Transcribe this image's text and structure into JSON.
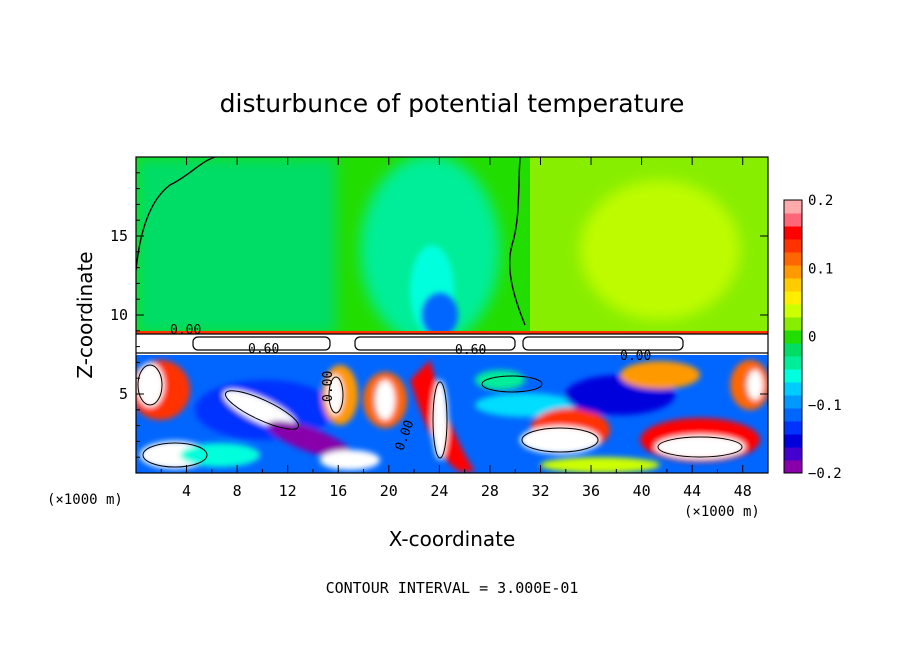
{
  "chart_data": {
    "type": "heatmap",
    "title": "disturbunce of potential temperature",
    "xlabel": "X-coordinate",
    "ylabel": "Z-coordinate",
    "x_unit_label": "(×1000 m)",
    "y_unit_label": "(×1000 m)",
    "footer": "CONTOUR INTERVAL = 3.000E-01",
    "xlim": [
      0,
      50
    ],
    "ylim": [
      0,
      20
    ],
    "x_ticks": [
      "4",
      "8",
      "12",
      "16",
      "20",
      "24",
      "28",
      "32",
      "36",
      "40",
      "44",
      "48"
    ],
    "x_tick_values": [
      4,
      8,
      12,
      16,
      20,
      24,
      28,
      32,
      36,
      40,
      44,
      48
    ],
    "y_ticks": [
      "5",
      "10",
      "15"
    ],
    "y_tick_values": [
      5,
      10,
      15
    ],
    "colorbar": {
      "range": [
        -0.2,
        0.2
      ],
      "ticks": [
        "0.2",
        "0.1",
        "0",
        "−0.1",
        "−0.2"
      ],
      "tick_values": [
        0.2,
        0.1,
        0,
        -0.1,
        -0.2
      ],
      "colors": [
        "#8800aa",
        "#4400cc",
        "#0000dd",
        "#0033ff",
        "#0066ff",
        "#0099ff",
        "#00ccff",
        "#00ffdd",
        "#00ee99",
        "#00dd66",
        "#22dd00",
        "#88ee00",
        "#ccff00",
        "#ffee00",
        "#ffcc00",
        "#ff9900",
        "#ff6600",
        "#ff3300",
        "#ff0000",
        "#ff6677",
        "#ffaaaa"
      ]
    },
    "contour_labels": [
      "0.00",
      "0.60",
      "0.60",
      "0.00",
      "0.00",
      "0.00"
    ],
    "colors": {
      "upper_left": "#22dd00",
      "upper_right": "#88ee00",
      "lower_background": "#0066ff"
    }
  }
}
